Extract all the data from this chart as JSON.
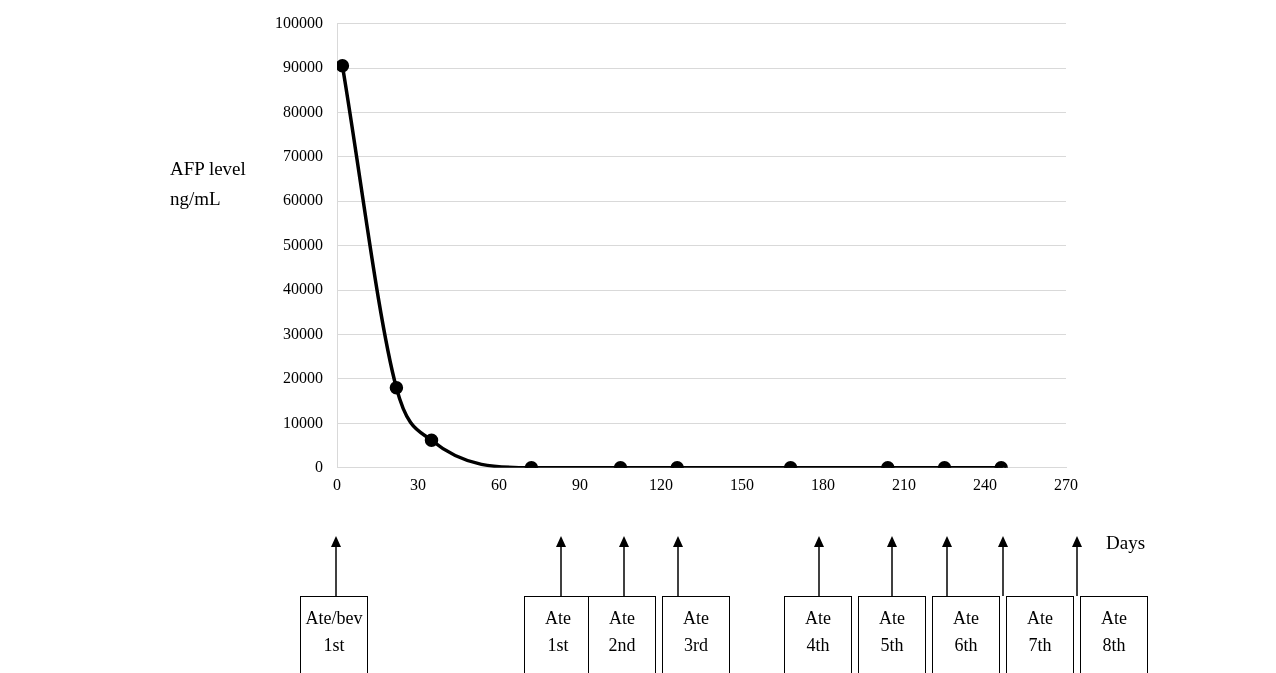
{
  "chart_data": {
    "type": "line",
    "xlabel": "Days",
    "ylabel": "AFP level ng/mL",
    "x": [
      2,
      22,
      35,
      72,
      105,
      126,
      168,
      204,
      225,
      246
    ],
    "series": [
      {
        "color": "#000000",
        "values": [
          90500,
          18000,
          6200,
          0,
          0,
          0,
          0,
          0,
          0,
          0
        ]
      }
    ],
    "xlim": [
      0,
      270
    ],
    "xticks": [
      0,
      30,
      60,
      90,
      120,
      150,
      180,
      210,
      240,
      270
    ],
    "ylim": [
      0,
      100000
    ],
    "yticks": [
      0,
      10000,
      20000,
      30000,
      40000,
      50000,
      60000,
      70000,
      80000,
      90000,
      100000
    ],
    "grid": "y",
    "legend": false,
    "marker": "circle",
    "line_style": "solid",
    "annotations": [
      "Ate/bev 1st",
      "Ate 1st",
      "Ate 2nd",
      "Ate 3rd",
      "Ate 4th",
      "Ate 5th",
      "Ate 6th",
      "Ate 7th",
      "Ate 8th"
    ]
  }
}
